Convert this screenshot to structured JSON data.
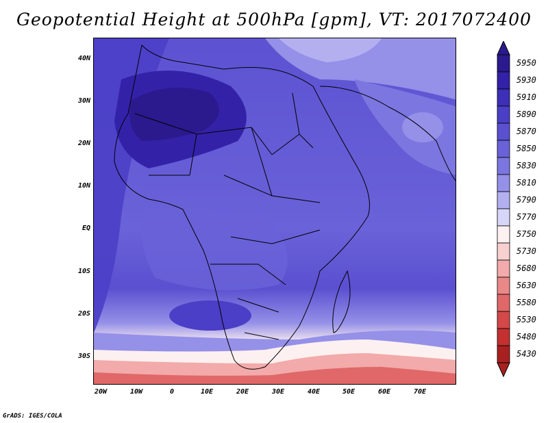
{
  "title": "Geopotential Height at 500hPa [gpm], VT: 2017072400",
  "credit": "GrADS: IGES/COLA",
  "map": {
    "lat_labels": [
      "40N",
      "30N",
      "20N",
      "10N",
      "EQ",
      "10S",
      "20S",
      "30S"
    ],
    "lon_labels": [
      "20W",
      "10W",
      "0",
      "10E",
      "20E",
      "30E",
      "40E",
      "50E",
      "60E",
      "70E"
    ]
  },
  "colorbar": {
    "levels": [
      "5950",
      "5930",
      "5910",
      "5890",
      "5870",
      "5850",
      "5830",
      "5810",
      "5790",
      "5770",
      "5750",
      "5730",
      "5680",
      "5630",
      "5580",
      "5530",
      "5480",
      "5430"
    ],
    "colors": [
      "#2a1a8e",
      "#3322a8",
      "#3d2fb8",
      "#4a3fc6",
      "#5a50d0",
      "#6a62d8",
      "#7c76e0",
      "#9590e8",
      "#b4b0f0",
      "#d8d6f8",
      "#fdf0f0",
      "#f8d0d0",
      "#f2aaaa",
      "#ea8888",
      "#e06868",
      "#d44848",
      "#c43030",
      "#a82020"
    ]
  }
}
